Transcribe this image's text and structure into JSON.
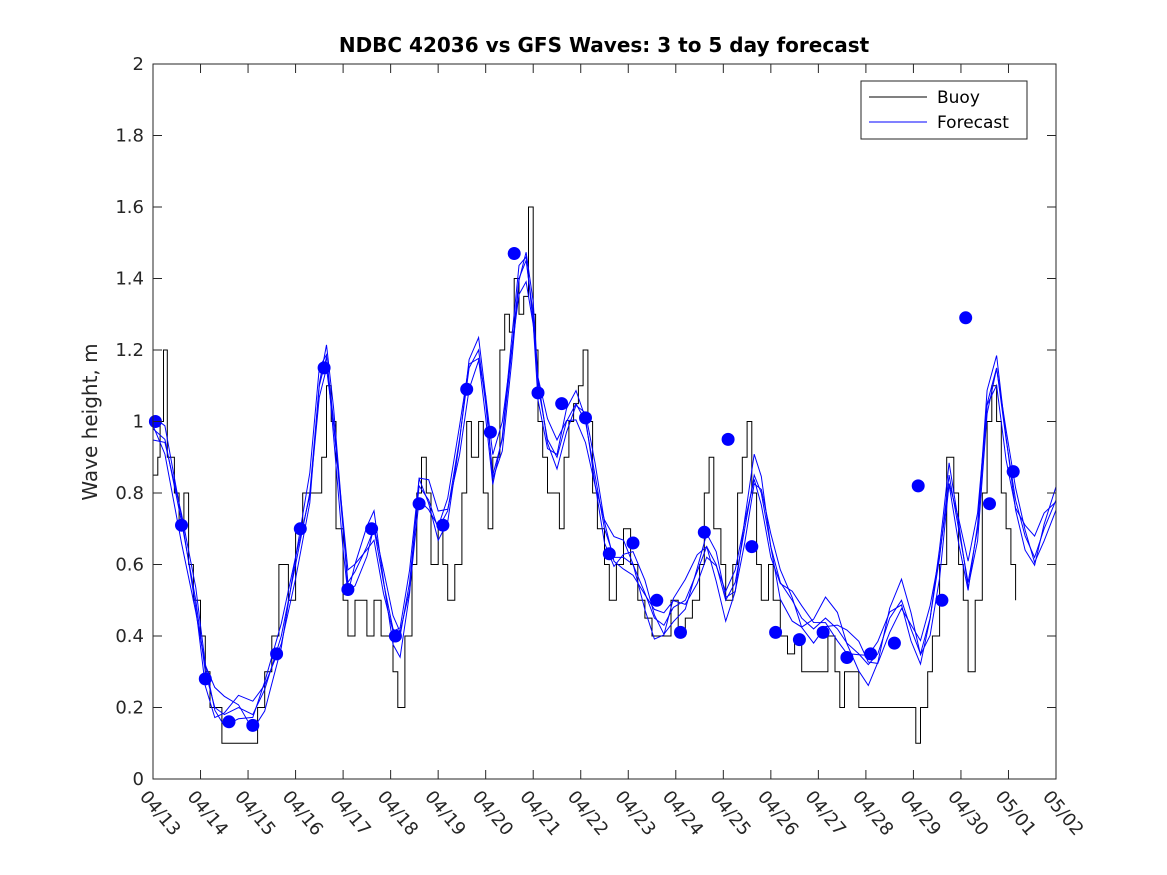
{
  "chart_data": {
    "type": "line",
    "title": "NDBC 42036 vs GFS Waves: 3 to 5 day forecast",
    "xlabel": "",
    "ylabel": "Wave height, m",
    "xlim": [
      "04/13",
      "05/02"
    ],
    "ylim": [
      0,
      2
    ],
    "x_ticks": [
      "04/13",
      "04/14",
      "04/15",
      "04/16",
      "04/17",
      "04/18",
      "04/19",
      "04/20",
      "04/21",
      "04/22",
      "04/23",
      "04/24",
      "04/25",
      "04/26",
      "04/27",
      "04/28",
      "04/29",
      "04/30",
      "05/01",
      "05/02"
    ],
    "y_ticks": [
      0,
      0.2,
      0.4,
      0.6,
      0.8,
      1,
      1.2,
      1.4,
      1.6,
      1.8,
      2
    ],
    "y_tick_labels": [
      "0",
      "0.2",
      "0.4",
      "0.6",
      "0.8",
      "1",
      "1.2",
      "1.4",
      "1.6",
      "1.8",
      "2"
    ],
    "grid": false,
    "legend": {
      "placement": "top-right",
      "entries": [
        {
          "name": "Buoy",
          "color": "#000000"
        },
        {
          "name": "Forecast",
          "color": "#0000ff"
        }
      ]
    },
    "colors": {
      "buoy": "#000000",
      "forecast": "#0000ff",
      "marker": "#0000ff"
    },
    "series": [
      {
        "name": "Buoy",
        "style": "stairs",
        "x_unit": "days since 04/13",
        "points": [
          [
            0.0,
            0.85
          ],
          [
            0.1,
            0.9
          ],
          [
            0.15,
            1.0
          ],
          [
            0.22,
            1.2
          ],
          [
            0.3,
            0.9
          ],
          [
            0.45,
            0.8
          ],
          [
            0.55,
            0.7
          ],
          [
            0.65,
            0.8
          ],
          [
            0.75,
            0.6
          ],
          [
            0.85,
            0.5
          ],
          [
            1.0,
            0.4
          ],
          [
            1.1,
            0.3
          ],
          [
            1.2,
            0.2
          ],
          [
            1.3,
            0.2
          ],
          [
            1.45,
            0.1
          ],
          [
            1.6,
            0.1
          ],
          [
            2.0,
            0.1
          ],
          [
            2.2,
            0.2
          ],
          [
            2.35,
            0.3
          ],
          [
            2.5,
            0.4
          ],
          [
            2.65,
            0.6
          ],
          [
            2.85,
            0.5
          ],
          [
            3.0,
            0.7
          ],
          [
            3.15,
            0.8
          ],
          [
            3.3,
            0.8
          ],
          [
            3.45,
            0.8
          ],
          [
            3.55,
            0.9
          ],
          [
            3.65,
            1.1
          ],
          [
            3.75,
            1.0
          ],
          [
            3.85,
            0.7
          ],
          [
            4.0,
            0.5
          ],
          [
            4.1,
            0.4
          ],
          [
            4.25,
            0.5
          ],
          [
            4.35,
            0.5
          ],
          [
            4.5,
            0.4
          ],
          [
            4.65,
            0.5
          ],
          [
            4.8,
            0.4
          ],
          [
            4.95,
            0.4
          ],
          [
            5.05,
            0.3
          ],
          [
            5.15,
            0.2
          ],
          [
            5.3,
            0.4
          ],
          [
            5.45,
            0.6
          ],
          [
            5.55,
            0.8
          ],
          [
            5.65,
            0.9
          ],
          [
            5.75,
            0.8
          ],
          [
            5.85,
            0.6
          ],
          [
            6.0,
            0.7
          ],
          [
            6.1,
            0.6
          ],
          [
            6.2,
            0.5
          ],
          [
            6.35,
            0.6
          ],
          [
            6.5,
            0.8
          ],
          [
            6.6,
            1.0
          ],
          [
            6.7,
            0.9
          ],
          [
            6.85,
            1.0
          ],
          [
            6.95,
            0.8
          ],
          [
            7.05,
            0.7
          ],
          [
            7.15,
            0.9
          ],
          [
            7.3,
            1.2
          ],
          [
            7.4,
            1.3
          ],
          [
            7.5,
            1.25
          ],
          [
            7.6,
            1.4
          ],
          [
            7.7,
            1.3
          ],
          [
            7.8,
            1.35
          ],
          [
            7.9,
            1.6
          ],
          [
            8.0,
            1.3
          ],
          [
            8.05,
            1.2
          ],
          [
            8.1,
            1.0
          ],
          [
            8.2,
            0.9
          ],
          [
            8.3,
            0.8
          ],
          [
            8.45,
            0.8
          ],
          [
            8.55,
            0.7
          ],
          [
            8.65,
            0.9
          ],
          [
            8.75,
            1.0
          ],
          [
            8.85,
            1.05
          ],
          [
            8.95,
            1.1
          ],
          [
            9.05,
            1.2
          ],
          [
            9.15,
            1.0
          ],
          [
            9.25,
            0.8
          ],
          [
            9.35,
            0.7
          ],
          [
            9.5,
            0.6
          ],
          [
            9.6,
            0.5
          ],
          [
            9.75,
            0.6
          ],
          [
            9.9,
            0.7
          ],
          [
            10.05,
            0.6
          ],
          [
            10.2,
            0.5
          ],
          [
            10.35,
            0.45
          ],
          [
            10.5,
            0.4
          ],
          [
            10.75,
            0.4
          ],
          [
            10.9,
            0.5
          ],
          [
            11.05,
            0.4
          ],
          [
            11.2,
            0.45
          ],
          [
            11.35,
            0.5
          ],
          [
            11.5,
            0.6
          ],
          [
            11.6,
            0.8
          ],
          [
            11.7,
            0.9
          ],
          [
            11.8,
            0.7
          ],
          [
            11.95,
            0.6
          ],
          [
            12.05,
            0.5
          ],
          [
            12.2,
            0.6
          ],
          [
            12.3,
            0.8
          ],
          [
            12.4,
            0.9
          ],
          [
            12.5,
            1.0
          ],
          [
            12.6,
            0.8
          ],
          [
            12.7,
            0.6
          ],
          [
            12.8,
            0.5
          ],
          [
            12.95,
            0.6
          ],
          [
            13.05,
            0.5
          ],
          [
            13.2,
            0.4
          ],
          [
            13.35,
            0.35
          ],
          [
            13.5,
            0.4
          ],
          [
            13.65,
            0.3
          ],
          [
            13.8,
            0.3
          ],
          [
            13.95,
            0.3
          ],
          [
            14.05,
            0.3
          ],
          [
            14.2,
            0.4
          ],
          [
            14.35,
            0.3
          ],
          [
            14.45,
            0.2
          ],
          [
            14.55,
            0.3
          ],
          [
            14.7,
            0.3
          ],
          [
            14.85,
            0.2
          ],
          [
            15.0,
            0.2
          ],
          [
            15.5,
            0.2
          ],
          [
            15.95,
            0.2
          ],
          [
            16.05,
            0.1
          ],
          [
            16.15,
            0.2
          ],
          [
            16.3,
            0.3
          ],
          [
            16.4,
            0.4
          ],
          [
            16.55,
            0.6
          ],
          [
            16.7,
            0.9
          ],
          [
            16.85,
            0.8
          ],
          [
            16.95,
            0.6
          ],
          [
            17.05,
            0.5
          ],
          [
            17.15,
            0.3
          ],
          [
            17.3,
            0.5
          ],
          [
            17.45,
            0.8
          ],
          [
            17.55,
            1.0
          ],
          [
            17.65,
            1.1
          ],
          [
            17.75,
            1.0
          ],
          [
            17.85,
            0.8
          ],
          [
            17.95,
            0.7
          ],
          [
            18.05,
            0.6
          ],
          [
            18.15,
            0.5
          ]
        ]
      },
      {
        "name": "Forecast",
        "style": "lines",
        "x_unit": "days since 04/13",
        "points": [
          [
            0.0,
            0.98
          ],
          [
            0.25,
            0.95
          ],
          [
            0.6,
            0.72
          ],
          [
            0.9,
            0.5
          ],
          [
            1.1,
            0.3
          ],
          [
            1.3,
            0.2
          ],
          [
            1.5,
            0.18
          ],
          [
            1.8,
            0.2
          ],
          [
            2.1,
            0.18
          ],
          [
            2.35,
            0.25
          ],
          [
            2.7,
            0.4
          ],
          [
            3.0,
            0.6
          ],
          [
            3.3,
            0.8
          ],
          [
            3.5,
            1.1
          ],
          [
            3.65,
            1.18
          ],
          [
            3.8,
            1.0
          ],
          [
            4.0,
            0.7
          ],
          [
            4.1,
            0.55
          ],
          [
            4.25,
            0.58
          ],
          [
            4.5,
            0.65
          ],
          [
            4.65,
            0.7
          ],
          [
            4.85,
            0.55
          ],
          [
            5.05,
            0.42
          ],
          [
            5.2,
            0.4
          ],
          [
            5.4,
            0.55
          ],
          [
            5.6,
            0.82
          ],
          [
            5.8,
            0.78
          ],
          [
            6.0,
            0.7
          ],
          [
            6.2,
            0.75
          ],
          [
            6.45,
            0.95
          ],
          [
            6.65,
            1.15
          ],
          [
            6.85,
            1.2
          ],
          [
            7.0,
            1.05
          ],
          [
            7.15,
            0.85
          ],
          [
            7.35,
            0.95
          ],
          [
            7.55,
            1.2
          ],
          [
            7.7,
            1.4
          ],
          [
            7.85,
            1.45
          ],
          [
            8.0,
            1.3
          ],
          [
            8.1,
            1.1
          ],
          [
            8.3,
            0.95
          ],
          [
            8.5,
            0.9
          ],
          [
            8.7,
            1.0
          ],
          [
            8.9,
            1.05
          ],
          [
            9.1,
            1.0
          ],
          [
            9.3,
            0.85
          ],
          [
            9.5,
            0.7
          ],
          [
            9.7,
            0.62
          ],
          [
            9.9,
            0.62
          ],
          [
            10.1,
            0.6
          ],
          [
            10.35,
            0.52
          ],
          [
            10.55,
            0.45
          ],
          [
            10.75,
            0.43
          ],
          [
            10.95,
            0.48
          ],
          [
            11.2,
            0.5
          ],
          [
            11.45,
            0.58
          ],
          [
            11.65,
            0.65
          ],
          [
            11.85,
            0.6
          ],
          [
            12.05,
            0.5
          ],
          [
            12.25,
            0.55
          ],
          [
            12.45,
            0.7
          ],
          [
            12.65,
            0.85
          ],
          [
            12.8,
            0.8
          ],
          [
            13.0,
            0.65
          ],
          [
            13.2,
            0.55
          ],
          [
            13.45,
            0.5
          ],
          [
            13.65,
            0.45
          ],
          [
            13.9,
            0.42
          ],
          [
            14.15,
            0.45
          ],
          [
            14.4,
            0.42
          ],
          [
            14.6,
            0.38
          ],
          [
            14.85,
            0.35
          ],
          [
            15.05,
            0.32
          ],
          [
            15.25,
            0.35
          ],
          [
            15.5,
            0.45
          ],
          [
            15.75,
            0.5
          ],
          [
            15.95,
            0.42
          ],
          [
            16.15,
            0.35
          ],
          [
            16.35,
            0.45
          ],
          [
            16.55,
            0.62
          ],
          [
            16.75,
            0.85
          ],
          [
            16.95,
            0.7
          ],
          [
            17.15,
            0.55
          ],
          [
            17.35,
            0.7
          ],
          [
            17.55,
            1.05
          ],
          [
            17.75,
            1.15
          ],
          [
            17.95,
            0.95
          ],
          [
            18.15,
            0.78
          ],
          [
            18.35,
            0.68
          ],
          [
            18.55,
            0.62
          ],
          [
            18.75,
            0.7
          ],
          [
            19.0,
            0.78
          ]
        ]
      },
      {
        "name": "Forecast markers",
        "style": "markers",
        "x_unit": "days since 04/13",
        "points": [
          [
            0.05,
            1.0
          ],
          [
            0.6,
            0.71
          ],
          [
            1.1,
            0.28
          ],
          [
            1.6,
            0.16
          ],
          [
            2.1,
            0.15
          ],
          [
            2.6,
            0.35
          ],
          [
            3.1,
            0.7
          ],
          [
            3.6,
            1.15
          ],
          [
            4.1,
            0.53
          ],
          [
            4.6,
            0.7
          ],
          [
            5.1,
            0.4
          ],
          [
            5.6,
            0.77
          ],
          [
            6.1,
            0.71
          ],
          [
            6.6,
            1.09
          ],
          [
            7.1,
            0.97
          ],
          [
            7.6,
            1.47
          ],
          [
            8.1,
            1.08
          ],
          [
            8.6,
            1.05
          ],
          [
            9.1,
            1.01
          ],
          [
            9.6,
            0.63
          ],
          [
            10.1,
            0.66
          ],
          [
            10.6,
            0.5
          ],
          [
            11.1,
            0.41
          ],
          [
            11.6,
            0.69
          ],
          [
            12.1,
            0.95
          ],
          [
            12.6,
            0.65
          ],
          [
            13.1,
            0.41
          ],
          [
            13.6,
            0.39
          ],
          [
            14.1,
            0.41
          ],
          [
            14.6,
            0.34
          ],
          [
            15.1,
            0.35
          ],
          [
            15.6,
            0.38
          ],
          [
            16.1,
            0.82
          ],
          [
            16.6,
            0.5
          ],
          [
            17.1,
            1.29
          ],
          [
            17.6,
            0.77
          ],
          [
            18.1,
            0.86
          ]
        ]
      }
    ]
  }
}
